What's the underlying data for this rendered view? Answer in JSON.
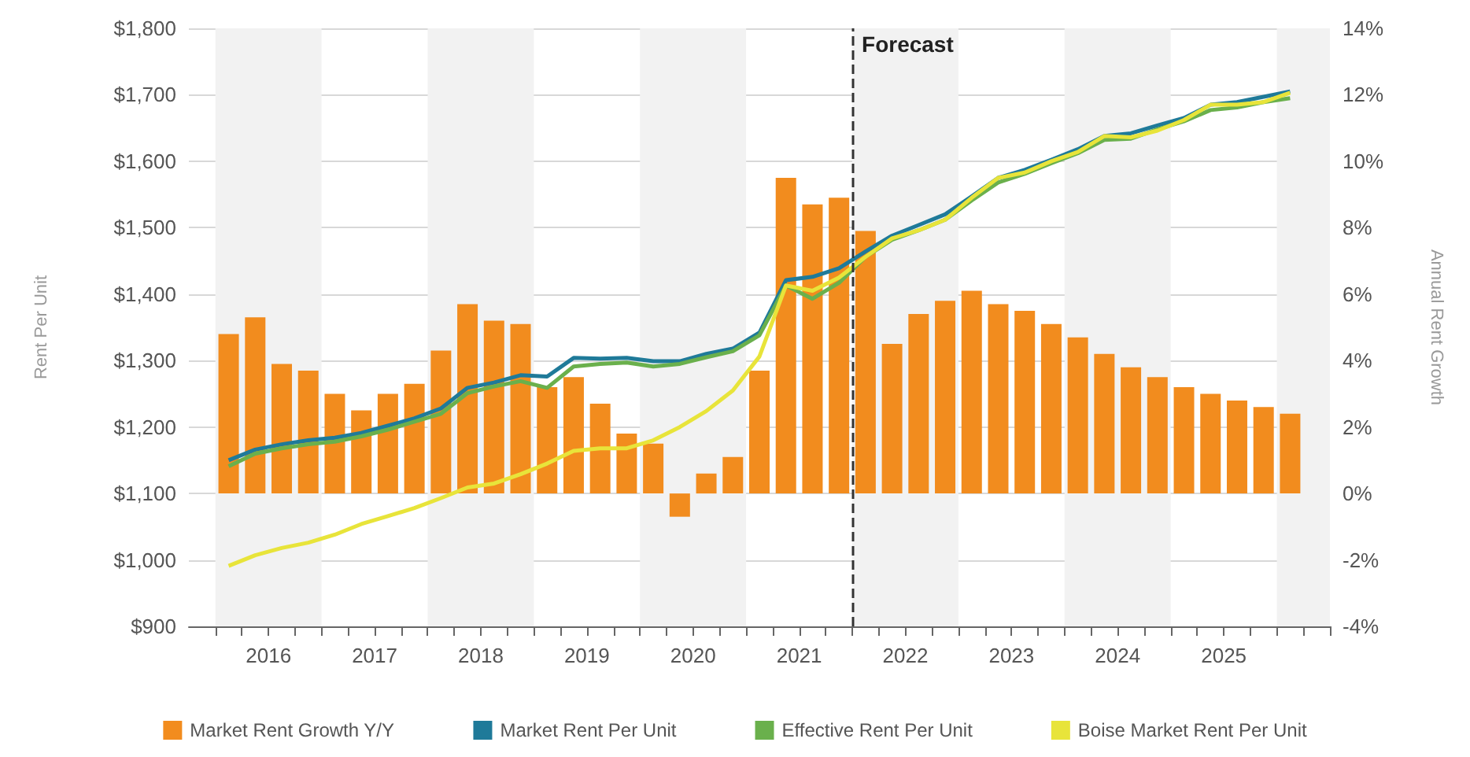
{
  "chart_data": {
    "type": "line",
    "ylabel": "Rent Per Unit",
    "y2label": "Annual Rent Growth",
    "x": [
      2016.125,
      2016.375,
      2016.625,
      2016.875,
      2017.125,
      2017.375,
      2017.625,
      2017.875,
      2018.125,
      2018.375,
      2018.625,
      2018.875,
      2019.125,
      2019.375,
      2019.625,
      2019.875,
      2020.125,
      2020.375,
      2020.625,
      2020.875,
      2021.125,
      2021.375,
      2021.625,
      2021.875,
      2022.125,
      2022.375,
      2022.625,
      2022.875,
      2023.125,
      2023.375,
      2023.625,
      2023.875,
      2024.125,
      2024.375,
      2024.625,
      2024.875,
      2025.125,
      2025.375,
      2025.625,
      2025.875,
      2026.125
    ],
    "series": [
      {
        "name": "Market Rent Growth Y/Y",
        "type": "bar",
        "axis": "y2",
        "color": "#f28c1e",
        "values": [
          4.8,
          5.3,
          3.9,
          3.7,
          3.0,
          2.5,
          3.0,
          3.3,
          4.3,
          5.7,
          5.2,
          5.1,
          3.2,
          3.5,
          2.7,
          1.8,
          1.5,
          -0.7,
          0.6,
          1.1,
          3.7,
          9.5,
          8.7,
          8.9,
          7.9,
          4.5,
          5.4,
          5.8,
          6.1,
          5.7,
          5.5,
          5.1,
          4.7,
          4.2,
          3.8,
          3.5,
          3.2,
          3.0,
          2.8,
          2.6,
          2.4
        ]
      },
      {
        "name": "Market Rent Per Unit",
        "color": "#1f7a99",
        "values": [
          1150,
          1166,
          1174,
          1180,
          1184,
          1191,
          1202,
          1213,
          1228,
          1259,
          1267,
          1278,
          1276,
          1304,
          1303,
          1304,
          1299,
          1299,
          1310,
          1318,
          1342,
          1421,
          1426,
          1439,
          1464,
          1488,
          1504,
          1520,
          1547,
          1575,
          1587,
          1602,
          1618,
          1638,
          1642,
          1654,
          1665,
          1685,
          1689,
          1697,
          1705
        ]
      },
      {
        "name": "Effective Rent Per Unit",
        "color": "#6ab04c",
        "values": [
          1141,
          1160,
          1168,
          1174,
          1178,
          1186,
          1196,
          1208,
          1220,
          1251,
          1261,
          1269,
          1259,
          1291,
          1295,
          1297,
          1291,
          1295,
          1305,
          1314,
          1338,
          1413,
          1393,
          1417,
          1456,
          1482,
          1496,
          1512,
          1541,
          1568,
          1581,
          1597,
          1612,
          1632,
          1634,
          1648,
          1660,
          1677,
          1681,
          1689,
          1695
        ]
      },
      {
        "name": "Boise Market Rent Per Unit",
        "color": "#e8e43a",
        "values": [
          991,
          1007,
          1018,
          1026,
          1038,
          1054,
          1066,
          1078,
          1093,
          1109,
          1115,
          1129,
          1145,
          1164,
          1168,
          1168,
          1180,
          1200,
          1224,
          1255,
          1306,
          1413,
          1405,
          1425,
          1456,
          1484,
          1496,
          1512,
          1545,
          1575,
          1583,
          1600,
          1614,
          1638,
          1636,
          1646,
          1662,
          1685,
          1685,
          1689,
          1703
        ]
      }
    ],
    "xlim": [
      2015.75,
      2026.5
    ],
    "xticks": [
      {
        "value": 2016,
        "label": null
      },
      {
        "value": 2016.25,
        "label": null
      },
      {
        "value": 2016.5,
        "label": "2016"
      },
      {
        "value": 2016.75,
        "label": null
      },
      {
        "value": 2017,
        "label": null
      },
      {
        "value": 2017.25,
        "label": null
      },
      {
        "value": 2017.5,
        "label": "2017"
      },
      {
        "value": 2017.75,
        "label": null
      },
      {
        "value": 2018,
        "label": null
      },
      {
        "value": 2018.25,
        "label": null
      },
      {
        "value": 2018.5,
        "label": "2018"
      },
      {
        "value": 2018.75,
        "label": null
      },
      {
        "value": 2019,
        "label": null
      },
      {
        "value": 2019.25,
        "label": null
      },
      {
        "value": 2019.5,
        "label": "2019"
      },
      {
        "value": 2019.75,
        "label": null
      },
      {
        "value": 2020,
        "label": null
      },
      {
        "value": 2020.25,
        "label": null
      },
      {
        "value": 2020.5,
        "label": "2020"
      },
      {
        "value": 2020.75,
        "label": null
      },
      {
        "value": 2021,
        "label": null
      },
      {
        "value": 2021.25,
        "label": null
      },
      {
        "value": 2021.5,
        "label": "2021"
      },
      {
        "value": 2021.75,
        "label": null
      },
      {
        "value": 2022,
        "label": null
      },
      {
        "value": 2022.25,
        "label": null
      },
      {
        "value": 2022.5,
        "label": "2022"
      },
      {
        "value": 2022.75,
        "label": null
      },
      {
        "value": 2023,
        "label": null
      },
      {
        "value": 2023.25,
        "label": null
      },
      {
        "value": 2023.5,
        "label": "2023"
      },
      {
        "value": 2023.75,
        "label": null
      },
      {
        "value": 2024,
        "label": null
      },
      {
        "value": 2024.25,
        "label": null
      },
      {
        "value": 2024.5,
        "label": "2024"
      },
      {
        "value": 2024.75,
        "label": null
      },
      {
        "value": 2025,
        "label": null
      },
      {
        "value": 2025.25,
        "label": null
      },
      {
        "value": 2025.5,
        "label": "2025"
      },
      {
        "value": 2025.75,
        "label": null
      },
      {
        "value": 2026,
        "label": null
      },
      {
        "value": 2026.25,
        "label": null
      },
      {
        "value": 2026.5,
        "label": null
      }
    ],
    "ylim": [
      900,
      1800
    ],
    "yticks": [
      {
        "value": 900,
        "label": "$900"
      },
      {
        "value": 1000,
        "label": "$1,000"
      },
      {
        "value": 1100,
        "label": "$1,100"
      },
      {
        "value": 1200,
        "label": "$1,200"
      },
      {
        "value": 1300,
        "label": "$1,300"
      },
      {
        "value": 1400,
        "label": "$1,400"
      },
      {
        "value": 1500,
        "label": "$1,500"
      },
      {
        "value": 1600,
        "label": "$1,600"
      },
      {
        "value": 1700,
        "label": "$1,700"
      },
      {
        "value": 1800,
        "label": "$1,800"
      }
    ],
    "y2lim": [
      -4,
      14
    ],
    "y2ticks": [
      {
        "value": -4,
        "label": "-4%"
      },
      {
        "value": -2,
        "label": "-2%"
      },
      {
        "value": 0,
        "label": "0%"
      },
      {
        "value": 2,
        "label": "2%"
      },
      {
        "value": 4,
        "label": "4%"
      },
      {
        "value": 6,
        "label": "6%"
      },
      {
        "value": 8,
        "label": "8%"
      },
      {
        "value": 10,
        "label": "10%"
      },
      {
        "value": 12,
        "label": "12%"
      },
      {
        "value": 14,
        "label": "14%"
      }
    ],
    "ref_lines": [
      {
        "axis": "x",
        "value": 2022,
        "label": "Forecast",
        "line_style": "dashed",
        "color": "#333333"
      }
    ],
    "bands": [
      {
        "axis": "x",
        "from": 2016,
        "to": 2017,
        "color": "#f2f2f2"
      },
      {
        "axis": "x",
        "from": 2018,
        "to": 2019,
        "color": "#f2f2f2"
      },
      {
        "axis": "x",
        "from": 2020,
        "to": 2021,
        "color": "#f2f2f2"
      },
      {
        "axis": "x",
        "from": 2022,
        "to": 2023,
        "color": "#f2f2f2"
      },
      {
        "axis": "x",
        "from": 2024,
        "to": 2025,
        "color": "#f2f2f2"
      },
      {
        "axis": "x",
        "from": 2026,
        "to": 2026.5,
        "color": "#f2f2f2"
      }
    ],
    "grid": "y",
    "legend": "bottom",
    "marker": "none"
  }
}
